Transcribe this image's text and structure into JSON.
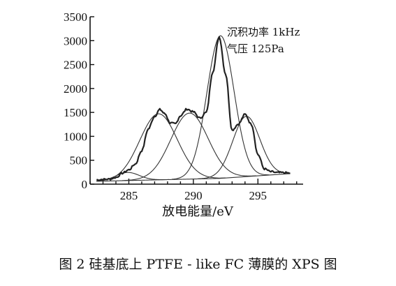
{
  "chart_data": {
    "type": "line",
    "xlabel": "放电能量/eV",
    "ylabel": "",
    "xlim": [
      282,
      298.5
    ],
    "ylim": [
      0,
      3500
    ],
    "x_ticks": [
      285,
      290,
      295
    ],
    "y_ticks": [
      0,
      500,
      1000,
      1500,
      2000,
      2500,
      3000,
      3500
    ],
    "annotations": [
      "沉积功率 1kHz",
      "气压 125Pa"
    ],
    "baseline": {
      "x": [
        282.5,
        292,
        297.5
      ],
      "values": [
        60,
        120,
        220
      ]
    },
    "components": [
      {
        "center": 284.9,
        "height": 170,
        "width": 0.9
      },
      {
        "center": 287.3,
        "height": 1380,
        "width": 1.45
      },
      {
        "center": 289.7,
        "height": 1380,
        "width": 1.45
      },
      {
        "center": 292.1,
        "height": 2980,
        "width": 1.05
      },
      {
        "center": 294.1,
        "height": 1260,
        "width": 1.05
      }
    ],
    "series": [
      {
        "values": [
          [
            282.5,
            90
          ],
          [
            283.0,
            100
          ],
          [
            283.5,
            105
          ],
          [
            284.0,
            140
          ],
          [
            284.5,
            230
          ],
          [
            285.0,
            300
          ],
          [
            285.5,
            420
          ],
          [
            286.0,
            700
          ],
          [
            286.5,
            1150
          ],
          [
            287.0,
            1420
          ],
          [
            287.4,
            1560
          ],
          [
            287.8,
            1470
          ],
          [
            288.2,
            1280
          ],
          [
            288.6,
            1260
          ],
          [
            289.0,
            1430
          ],
          [
            289.5,
            1570
          ],
          [
            290.0,
            1510
          ],
          [
            290.5,
            1380
          ],
          [
            291.0,
            1500
          ],
          [
            291.5,
            2350
          ],
          [
            292.0,
            3080
          ],
          [
            292.5,
            2300
          ],
          [
            293.0,
            1130
          ],
          [
            293.5,
            1260
          ],
          [
            294.0,
            1460
          ],
          [
            294.5,
            1250
          ],
          [
            295.0,
            620
          ],
          [
            295.5,
            320
          ],
          [
            296.0,
            260
          ],
          [
            296.5,
            240
          ],
          [
            297.0,
            240
          ],
          [
            297.5,
            230
          ]
        ]
      }
    ]
  },
  "caption": "图 2    硅基底上 PTFE - like FC 薄膜的 XPS 图"
}
